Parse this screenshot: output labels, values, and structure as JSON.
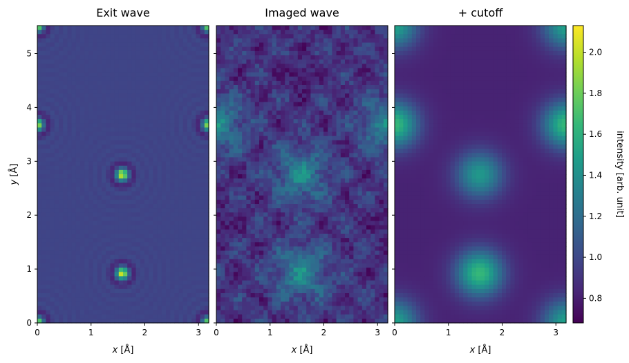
{
  "chart_data": [
    {
      "type": "heatmap",
      "title": "Exit wave",
      "xlabel_var": "x",
      "xlabel_unit": " [Å]",
      "ylabel_var": "y",
      "ylabel_unit": " [Å]",
      "xlim": [
        0,
        3.19
      ],
      "ylim": [
        0,
        5.52
      ],
      "xticks": [
        0,
        1,
        2,
        3
      ],
      "yticks": [
        0,
        1,
        2,
        3,
        4,
        5
      ],
      "atoms": [
        {
          "x": 1.58,
          "y": 2.75,
          "peak": 2.1
        },
        {
          "x": 1.58,
          "y": 0.92,
          "peak": 2.1
        },
        {
          "x": 0.0,
          "y": 3.68,
          "peak": 2.0
        },
        {
          "x": 3.19,
          "y": 3.68,
          "peak": 2.0
        },
        {
          "x": 0.0,
          "y": 0.0,
          "peak": 2.0
        },
        {
          "x": 3.19,
          "y": 0.0,
          "peak": 2.0
        },
        {
          "x": 0.0,
          "y": 5.52,
          "peak": 2.0
        },
        {
          "x": 3.19,
          "y": 5.52,
          "peak": 2.0
        }
      ]
    },
    {
      "type": "heatmap",
      "title": "Imaged wave",
      "xlabel_var": "x",
      "xlabel_unit": " [Å]",
      "xlim": [
        0,
        3.19
      ],
      "ylim": [
        0,
        5.52
      ],
      "xticks": [
        0,
        1,
        2,
        3
      ],
      "yticks": [
        0,
        1,
        2,
        3,
        4,
        5
      ],
      "bright_regions": [
        {
          "x": 1.58,
          "y": 2.75
        },
        {
          "x": 1.58,
          "y": 0.92
        },
        {
          "x": 0.0,
          "y": 3.68
        },
        {
          "x": 3.19,
          "y": 3.68
        }
      ],
      "dark_regions": [
        {
          "x": 1.58,
          "y": 4.6
        },
        {
          "x": 0.0,
          "y": 1.84
        },
        {
          "x": 3.19,
          "y": 1.84
        }
      ]
    },
    {
      "type": "heatmap",
      "title": "+ cutoff",
      "xlabel_var": "x",
      "xlabel_unit": " [Å]",
      "xlim": [
        0,
        3.19
      ],
      "ylim": [
        0,
        5.52
      ],
      "xticks": [
        0,
        1,
        2,
        3
      ],
      "yticks": [
        0,
        1,
        2,
        3,
        4,
        5
      ],
      "atoms": [
        {
          "x": 1.58,
          "y": 2.75,
          "peak": 1.45
        },
        {
          "x": 1.58,
          "y": 0.92,
          "peak": 1.65
        },
        {
          "x": 0.0,
          "y": 3.68,
          "peak": 1.65
        },
        {
          "x": 3.19,
          "y": 3.68,
          "peak": 1.65
        },
        {
          "x": 0.0,
          "y": 0.0,
          "peak": 1.5
        },
        {
          "x": 3.19,
          "y": 0.0,
          "peak": 1.5
        },
        {
          "x": 0.0,
          "y": 5.52,
          "peak": 1.5
        },
        {
          "x": 3.19,
          "y": 5.52,
          "peak": 1.5
        }
      ]
    }
  ],
  "colorbar": {
    "label": "intensity [arb. unit]",
    "min": 0.68,
    "max": 2.13,
    "ticks": [
      0.8,
      1.0,
      1.2,
      1.4,
      1.6,
      1.8,
      2.0
    ],
    "tick_labels": [
      "0.8",
      "1.0",
      "1.2",
      "1.4",
      "1.6",
      "1.8",
      "2.0"
    ],
    "colormap": "viridis",
    "colormap_stops": [
      "#440154",
      "#482878",
      "#3e4989",
      "#31688e",
      "#26828e",
      "#1f9e89",
      "#35b779",
      "#6ece58",
      "#b5de2b",
      "#fde725"
    ]
  }
}
